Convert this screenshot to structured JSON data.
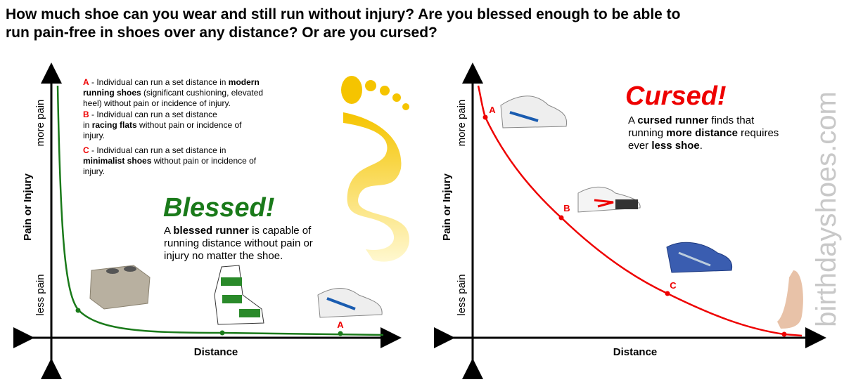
{
  "title": [
    "How much shoe can you wear and still run without injury?  Are you blessed enough to be able to",
    "run pain-free in shoes over any distance?  Or are you cursed?"
  ],
  "left": {
    "y_axis": "Pain or Injury",
    "y_top": "more pain",
    "y_bottom": "less pain",
    "x_axis": "Distance",
    "legend": [
      [
        "A",
        " - Individual can run a set distance in ",
        "modern"
      ],
      [
        "running shoes",
        " (significant cushioning, elevated"
      ],
      [
        "heel) without pain or incidence of injury."
      ],
      [
        "B",
        " - Individual can run a set distance"
      ],
      [
        "in ",
        "racing flats",
        " without pain or incidence of"
      ],
      [
        "injury."
      ],
      [
        "C",
        " - Individual can run a set distance in"
      ],
      [
        "minimalist shoes",
        " without pain or incidence of"
      ],
      [
        "injury."
      ]
    ],
    "heading": "Blessed!",
    "text": [
      [
        "A ",
        "blessed runner",
        " is capable of"
      ],
      [
        "running distance without pain or"
      ],
      [
        "injury no matter the shoe."
      ]
    ],
    "point_label": "A"
  },
  "right": {
    "y_axis": "Pain or Injury",
    "y_top": "more pain",
    "y_bottom": "less pain",
    "x_axis": "Distance",
    "heading": "Cursed!",
    "text": [
      [
        "A ",
        "cursed runner",
        " finds that"
      ],
      [
        "running ",
        "more distance",
        " requires"
      ],
      [
        "ever ",
        "less shoe",
        "."
      ]
    ],
    "point_labels": [
      "A",
      "B",
      "C"
    ]
  },
  "watermark": "birthdayshoes.com"
}
